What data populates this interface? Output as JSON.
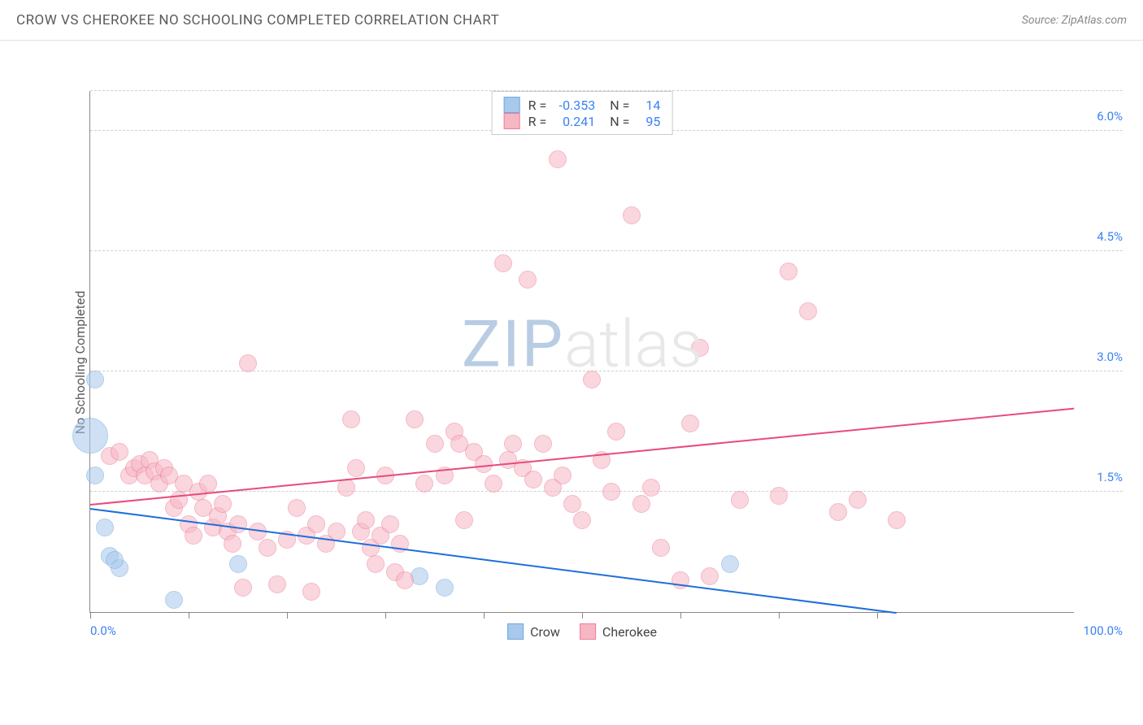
{
  "header": {
    "title": "CROW VS CHEROKEE NO SCHOOLING COMPLETED CORRELATION CHART",
    "source": "Source: ZipAtlas.com"
  },
  "chart": {
    "y_axis_label": "No Schooling Completed",
    "watermark_part1": "ZIP",
    "watermark_part2": "atlas",
    "background_color": "#ffffff",
    "grid_color": "#d0d0d0",
    "axis_color": "#888888",
    "xlim": [
      0,
      100
    ],
    "ylim": [
      0,
      6.5
    ],
    "x_ticks": [
      0,
      10,
      20,
      30,
      40,
      50,
      60,
      70,
      80
    ],
    "y_ticks": [
      {
        "value": 1.5,
        "label": "1.5%"
      },
      {
        "value": 3.0,
        "label": "3.0%"
      },
      {
        "value": 4.5,
        "label": "4.5%"
      },
      {
        "value": 6.0,
        "label": "6.0%"
      }
    ],
    "x_axis_labels": {
      "left": "0.0%",
      "right": "100.0%"
    },
    "series": [
      {
        "name": "Crow",
        "fill_color": "#a8c8ec",
        "stroke_color": "#6ea8e0",
        "fill_opacity": 0.55,
        "line_color": "#1e6fd9",
        "marker_radius": 11,
        "R": "-0.353",
        "N": "14",
        "trend": {
          "x1": 0,
          "y1": 1.3,
          "x2": 82,
          "y2": 0.0
        },
        "points": [
          {
            "x": 0.5,
            "y": 2.9,
            "r": 11
          },
          {
            "x": 0.5,
            "y": 1.7,
            "r": 11
          },
          {
            "x": 0.0,
            "y": 2.2,
            "r": 22
          },
          {
            "x": 1.5,
            "y": 1.05,
            "r": 11
          },
          {
            "x": 2.0,
            "y": 0.7,
            "r": 11
          },
          {
            "x": 3.0,
            "y": 0.55,
            "r": 11
          },
          {
            "x": 2.5,
            "y": 0.65,
            "r": 11
          },
          {
            "x": 8.5,
            "y": 0.15,
            "r": 11
          },
          {
            "x": 15.0,
            "y": 0.6,
            "r": 11
          },
          {
            "x": 33.5,
            "y": 0.45,
            "r": 11
          },
          {
            "x": 36.0,
            "y": 0.3,
            "r": 11
          },
          {
            "x": 65.0,
            "y": 0.6,
            "r": 11
          }
        ]
      },
      {
        "name": "Cherokee",
        "fill_color": "#f7b6c4",
        "stroke_color": "#ec7f9a",
        "fill_opacity": 0.55,
        "line_color": "#e84b7a",
        "marker_radius": 11,
        "R": "0.241",
        "N": "95",
        "trend": {
          "x1": 0,
          "y1": 1.35,
          "x2": 100,
          "y2": 2.55
        },
        "points": [
          {
            "x": 2,
            "y": 1.95
          },
          {
            "x": 3,
            "y": 2.0
          },
          {
            "x": 4,
            "y": 1.7
          },
          {
            "x": 4.5,
            "y": 1.8
          },
          {
            "x": 5,
            "y": 1.85
          },
          {
            "x": 5.5,
            "y": 1.7
          },
          {
            "x": 6,
            "y": 1.9
          },
          {
            "x": 6.5,
            "y": 1.75
          },
          {
            "x": 7,
            "y": 1.6
          },
          {
            "x": 7.5,
            "y": 1.8
          },
          {
            "x": 8,
            "y": 1.7
          },
          {
            "x": 8.5,
            "y": 1.3
          },
          {
            "x": 9,
            "y": 1.4
          },
          {
            "x": 9.5,
            "y": 1.6
          },
          {
            "x": 10,
            "y": 1.1
          },
          {
            "x": 10.5,
            "y": 0.95
          },
          {
            "x": 11,
            "y": 1.5
          },
          {
            "x": 11.5,
            "y": 1.3
          },
          {
            "x": 12,
            "y": 1.6
          },
          {
            "x": 12.5,
            "y": 1.05
          },
          {
            "x": 13,
            "y": 1.2
          },
          {
            "x": 13.5,
            "y": 1.35
          },
          {
            "x": 14,
            "y": 1.0
          },
          {
            "x": 14.5,
            "y": 0.85
          },
          {
            "x": 15,
            "y": 1.1
          },
          {
            "x": 15.5,
            "y": 0.3
          },
          {
            "x": 16,
            "y": 3.1
          },
          {
            "x": 17,
            "y": 1.0
          },
          {
            "x": 18,
            "y": 0.8
          },
          {
            "x": 19,
            "y": 0.35
          },
          {
            "x": 20,
            "y": 0.9
          },
          {
            "x": 21,
            "y": 1.3
          },
          {
            "x": 22,
            "y": 0.95
          },
          {
            "x": 22.5,
            "y": 0.25
          },
          {
            "x": 23,
            "y": 1.1
          },
          {
            "x": 24,
            "y": 0.85
          },
          {
            "x": 25,
            "y": 1.0
          },
          {
            "x": 26,
            "y": 1.55
          },
          {
            "x": 26.5,
            "y": 2.4
          },
          {
            "x": 27,
            "y": 1.8
          },
          {
            "x": 27.5,
            "y": 1.0
          },
          {
            "x": 28,
            "y": 1.15
          },
          {
            "x": 28.5,
            "y": 0.8
          },
          {
            "x": 29,
            "y": 0.6
          },
          {
            "x": 29.5,
            "y": 0.95
          },
          {
            "x": 30,
            "y": 1.7
          },
          {
            "x": 30.5,
            "y": 1.1
          },
          {
            "x": 31,
            "y": 0.5
          },
          {
            "x": 31.5,
            "y": 0.85
          },
          {
            "x": 32,
            "y": 0.4
          },
          {
            "x": 33,
            "y": 2.4
          },
          {
            "x": 34,
            "y": 1.6
          },
          {
            "x": 35,
            "y": 2.1
          },
          {
            "x": 36,
            "y": 1.7
          },
          {
            "x": 37,
            "y": 2.25
          },
          {
            "x": 37.5,
            "y": 2.1
          },
          {
            "x": 38,
            "y": 1.15
          },
          {
            "x": 39,
            "y": 2.0
          },
          {
            "x": 40,
            "y": 1.85
          },
          {
            "x": 41,
            "y": 1.6
          },
          {
            "x": 42,
            "y": 4.35
          },
          {
            "x": 42.5,
            "y": 1.9
          },
          {
            "x": 43,
            "y": 2.1
          },
          {
            "x": 44,
            "y": 1.8
          },
          {
            "x": 44.5,
            "y": 4.15
          },
          {
            "x": 45,
            "y": 1.65
          },
          {
            "x": 46,
            "y": 2.1
          },
          {
            "x": 47,
            "y": 1.55
          },
          {
            "x": 47.5,
            "y": 5.65
          },
          {
            "x": 48,
            "y": 1.7
          },
          {
            "x": 49,
            "y": 1.35
          },
          {
            "x": 50,
            "y": 1.15
          },
          {
            "x": 51,
            "y": 2.9
          },
          {
            "x": 52,
            "y": 1.9
          },
          {
            "x": 53,
            "y": 1.5
          },
          {
            "x": 53.5,
            "y": 2.25
          },
          {
            "x": 55,
            "y": 4.95
          },
          {
            "x": 56,
            "y": 1.35
          },
          {
            "x": 57,
            "y": 1.55
          },
          {
            "x": 58,
            "y": 0.8
          },
          {
            "x": 60,
            "y": 0.4
          },
          {
            "x": 61,
            "y": 2.35
          },
          {
            "x": 62,
            "y": 3.3
          },
          {
            "x": 63,
            "y": 0.45
          },
          {
            "x": 66,
            "y": 1.4
          },
          {
            "x": 70,
            "y": 1.45
          },
          {
            "x": 71,
            "y": 4.25
          },
          {
            "x": 73,
            "y": 3.75
          },
          {
            "x": 76,
            "y": 1.25
          },
          {
            "x": 78,
            "y": 1.4
          },
          {
            "x": 82,
            "y": 1.15
          }
        ]
      }
    ],
    "legend_bottom": [
      {
        "swatch_fill": "#a8c8ec",
        "swatch_stroke": "#6ea8e0",
        "label": "Crow"
      },
      {
        "swatch_fill": "#f7b6c4",
        "swatch_stroke": "#ec7f9a",
        "label": "Cherokee"
      }
    ]
  }
}
